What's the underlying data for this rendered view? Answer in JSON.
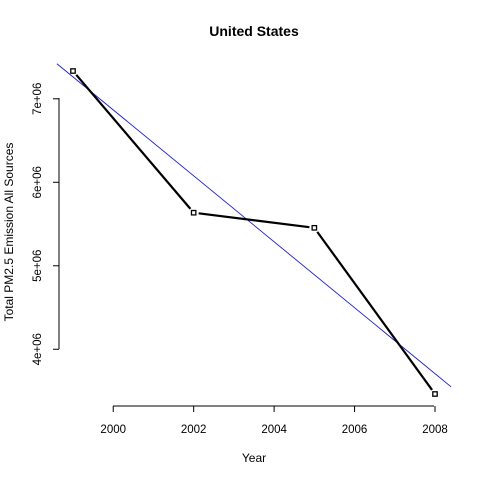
{
  "chart_data": {
    "type": "line",
    "title": "United States",
    "xlabel": "Year",
    "ylabel": "Total PM2.5 Emission All Sources",
    "x": [
      1999,
      2002,
      2005,
      2008
    ],
    "series": [
      {
        "values": [
          7332967,
          5635780,
          5454703,
          3464206
        ]
      }
    ],
    "trend_line": {
      "x": [
        1998.6,
        2008.4
      ],
      "y": [
        7420000,
        3550000
      ],
      "color": "#1f1fd0"
    },
    "series_color": "#000000",
    "xlim": [
      1999,
      2008
    ],
    "ylim": [
      3464206,
      7332967
    ],
    "xticks": [
      2000,
      2002,
      2004,
      2006,
      2008
    ],
    "xtick_labels": [
      "2000",
      "2002",
      "2004",
      "2006",
      "2008"
    ],
    "yticks": [
      4000000,
      5000000,
      6000000,
      7000000
    ],
    "ytick_labels": [
      "4e+06",
      "5e+06",
      "6e+06",
      "7e+06"
    ],
    "grid": false,
    "legend": "none"
  }
}
